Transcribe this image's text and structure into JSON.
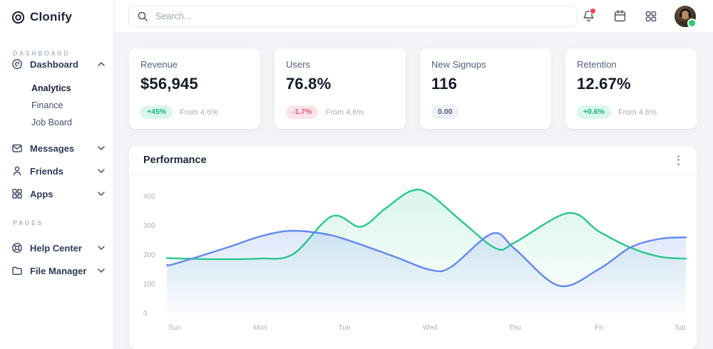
{
  "brand": {
    "name": "Clonify"
  },
  "topbar": {
    "search_placeholder": "Search...",
    "has_notification_dot": true,
    "online_status": true
  },
  "sidebar": {
    "sections": [
      {
        "label": "DASHBOARD",
        "items": [
          {
            "label": "Dashboard",
            "expanded": true,
            "children": [
              {
                "label": "Analytics",
                "active": true
              },
              {
                "label": "Finance",
                "active": false
              },
              {
                "label": "Job Board",
                "active": false
              }
            ]
          },
          {
            "label": "Messages"
          },
          {
            "label": "Friends"
          },
          {
            "label": "Apps"
          }
        ]
      },
      {
        "label": "PAGES",
        "items": [
          {
            "label": "Help Center"
          },
          {
            "label": "File Manager"
          }
        ]
      }
    ]
  },
  "stat_cards": [
    {
      "title": "Revenue",
      "value": "$56,945",
      "badge": {
        "text": "+45%",
        "type": "up"
      },
      "note": "From 4.6%"
    },
    {
      "title": "Users",
      "value": "76.8%",
      "badge": {
        "text": "-1.7%",
        "type": "down"
      },
      "note": "From 4.6%"
    },
    {
      "title": "New Signups",
      "value": "116",
      "badge": {
        "text": "0.00",
        "type": "neutral"
      },
      "note": ""
    },
    {
      "title": "Retention",
      "value": "12.67%",
      "badge": {
        "text": "+0.6%",
        "type": "up"
      },
      "note": "From 4.6%"
    }
  ],
  "panel": {
    "title": "Performance"
  },
  "colors": {
    "accent_green": "#29c78f",
    "accent_blue": "#6189f0",
    "badge_up": "#12b880",
    "badge_down": "#f3506b",
    "status_online": "#2ecc71",
    "notification": "#f4434f",
    "page_bg": "#f2f4f8"
  },
  "chart_data": {
    "type": "area",
    "title": "Performance",
    "x_labels": [
      "Sun",
      "Mon",
      "Tue",
      "Wed",
      "Thu",
      "Fri",
      "Sat"
    ],
    "y_ticks": [
      400,
      300,
      200,
      100,
      0
    ],
    "ylim": [
      0,
      450
    ],
    "grid": false,
    "legend": false,
    "series": [
      {
        "name": "series-green",
        "color": "#29c78f",
        "fill_from": "rgba(41,199,143,0.18)",
        "fill_to": "rgba(41,199,143,0)",
        "day_values": {
          "Sun": 191,
          "Mon": 190,
          "Tue": 318,
          "Wed": 410,
          "Thu": 246,
          "Fri": 283,
          "Sat": 190
        },
        "points": [
          [
            -0.09,
            192
          ],
          [
            0,
            191
          ],
          [
            0.5,
            188
          ],
          [
            1,
            190
          ],
          [
            1.4,
            205
          ],
          [
            1.86,
            335
          ],
          [
            2.2,
            299
          ],
          [
            2.49,
            361
          ],
          [
            2.8,
            422
          ],
          [
            3.02,
            410
          ],
          [
            3.42,
            312
          ],
          [
            3.81,
            224
          ],
          [
            4.03,
            246
          ],
          [
            4.66,
            346
          ],
          [
            5.02,
            283
          ],
          [
            5.4,
            227
          ],
          [
            5.75,
            196
          ],
          [
            6.05,
            190
          ]
        ]
      },
      {
        "name": "series-blue",
        "color": "#6189f0",
        "fill_from": "rgba(97,137,240,0.30)",
        "fill_to": "rgba(97,137,240,0.02)",
        "day_values": {
          "Sun": 172,
          "Mon": 265,
          "Tue": 258,
          "Wed": 152,
          "Thu": 222,
          "Fri": 154,
          "Sat": 263
        },
        "points": [
          [
            -0.09,
            168
          ],
          [
            0,
            172
          ],
          [
            0.63,
            229
          ],
          [
            1,
            265
          ],
          [
            1.35,
            285
          ],
          [
            1.7,
            278
          ],
          [
            2,
            258
          ],
          [
            2.6,
            197
          ],
          [
            3.02,
            152
          ],
          [
            3.27,
            161
          ],
          [
            3.76,
            276
          ],
          [
            4.03,
            222
          ],
          [
            4.55,
            97
          ],
          [
            5.02,
            154
          ],
          [
            5.4,
            229
          ],
          [
            5.75,
            258
          ],
          [
            6.05,
            263
          ]
        ]
      }
    ]
  }
}
